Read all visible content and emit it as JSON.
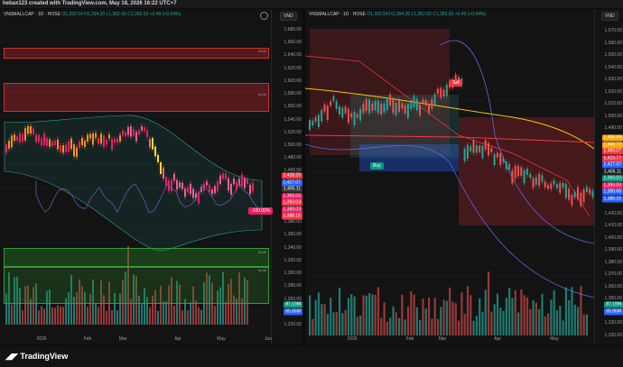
{
  "credit": "hebax123 created with TradingView.com, May 18, 2026 16:22 UTC+7",
  "footer": {
    "brand": "TradingView"
  },
  "left": {
    "symbol": "VNSMALLCAP · 1D · HOSE",
    "ohlc": "O1,392.54 H1,394.20 L1,382.93 C1,393.03 +0.49 (+0.04%)",
    "currency": "VND",
    "price_ticks": [
      "1,680.00",
      "1,660.00",
      "1,640.00",
      "1,620.00",
      "1,600.00",
      "1,580.00",
      "1,560.00",
      "1,540.00",
      "1,520.00",
      "1,500.00",
      "1,480.00",
      "1,460.00",
      "1,440.00",
      "1,420.00",
      "1,400.00",
      "1,380.00",
      "1,360.00",
      "1,340.00",
      "1,320.00",
      "1,300.00",
      "1,280.00",
      "1,260.00",
      "1,240.00",
      "1,220.00"
    ],
    "price_labels": [
      "1,428.20",
      "1,427.07",
      "1,405.11",
      "1,393.03",
      "1,393.03",
      "1,393.03",
      "1,388.15"
    ],
    "vol_labels": [
      "87.19M",
      "65.66M"
    ],
    "x_labels": [
      "2026",
      "Feb",
      "Mar",
      "Apr",
      "May",
      "Jun"
    ],
    "change_badge": "-100.00%",
    "zone_labels": [
      "8a.68",
      "8a.68",
      "8a.68",
      "8a.68"
    ]
  },
  "right": {
    "symbol": "VNSMALLCAP · 1D · HOSE",
    "ohlc": "O1,392.54 H1,394.20 L1,382.93 C1,393.03 +0.49 (+0.04%)",
    "currency": "VND",
    "price_ticks": [
      "1,570.00",
      "1,560.00",
      "1,550.00",
      "1,540.00",
      "1,530.00",
      "1,520.00",
      "1,510.00",
      "1,500.00",
      "1,490.00",
      "1,480.00",
      "1,470.00",
      "1,460.00",
      "1,450.00",
      "1,440.00",
      "1,430.00",
      "1,420.00",
      "1,410.00",
      "1,400.00",
      "1,390.00",
      "1,380.00",
      "1,370.00",
      "1,360.00",
      "1,350.00",
      "1,340.00",
      "1,330.00",
      "1,320.00"
    ],
    "price_labels": [
      "1,468.09",
      "1,466.72",
      "1,466.07",
      "1,423.77",
      "1,427.07",
      "1,405.11",
      "1,393.03",
      "1,393.03",
      "1,390.68",
      "1,388.15"
    ],
    "vol_labels": [
      "87.19M",
      "65.66M"
    ],
    "x_labels": [
      "2026",
      "Feb",
      "Mar",
      "Apr",
      "May"
    ],
    "sell_tag": "Sell",
    "buy_tag": "Buy"
  }
}
